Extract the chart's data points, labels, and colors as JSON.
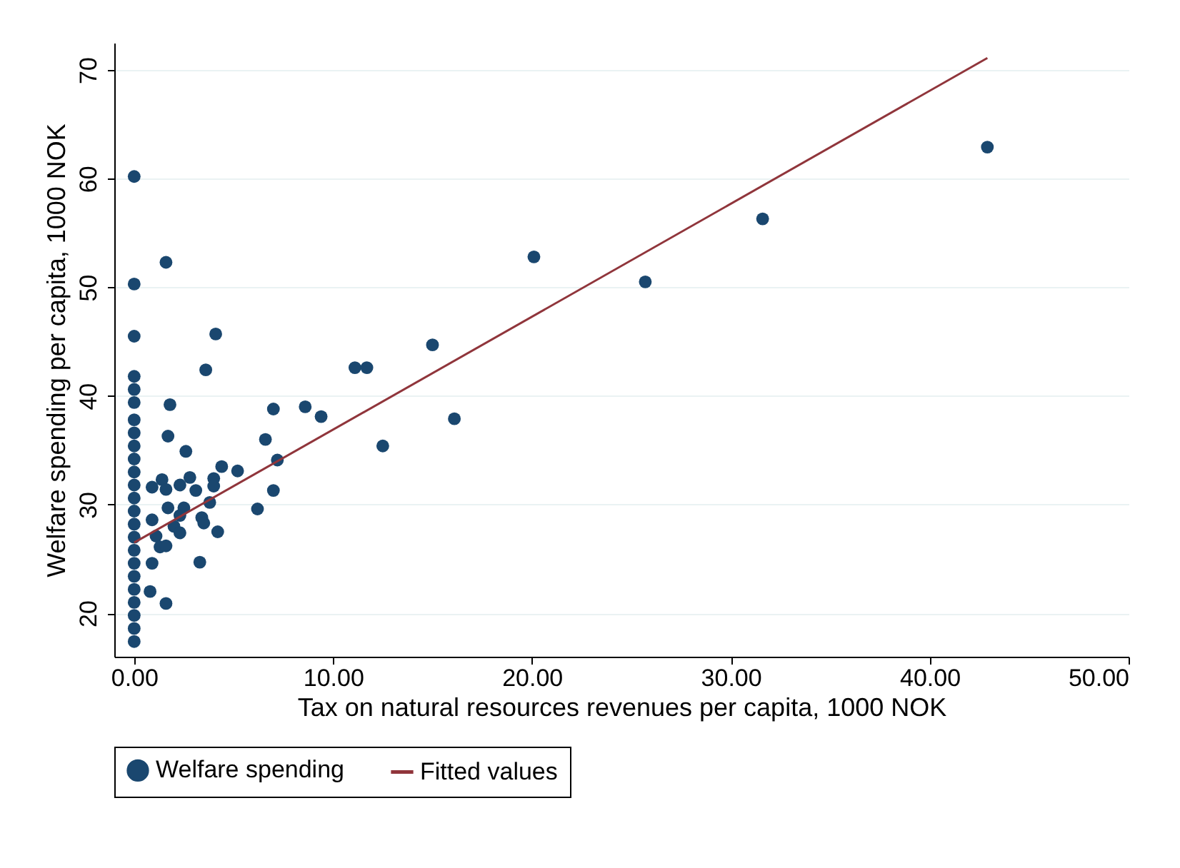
{
  "chart_data": {
    "type": "scatter",
    "xlabel": "Tax on natural resources revenues per capita, 1000 NOK",
    "ylabel": "Welfare spending per capita, 1000 NOK",
    "xlim": [
      -1,
      50
    ],
    "ylim": [
      16,
      72.5
    ],
    "xticks": [
      {
        "value": 0,
        "label": "0.00"
      },
      {
        "value": 10,
        "label": "10.00"
      },
      {
        "value": 20,
        "label": "20.00"
      },
      {
        "value": 30,
        "label": "30.00"
      },
      {
        "value": 40,
        "label": "40.00"
      },
      {
        "value": 50,
        "label": "50.00"
      }
    ],
    "yticks": [
      20,
      30,
      40,
      50,
      60,
      70
    ],
    "grid": "y",
    "legend": "bottom",
    "series": [
      {
        "name": "Welfare spending",
        "marker": "circle",
        "color": "#1a476f",
        "x": [
          0,
          0,
          0,
          0,
          0,
          0,
          0,
          0,
          0,
          0,
          0,
          0,
          0,
          0,
          0,
          0,
          0,
          0,
          0,
          0,
          0,
          0,
          0,
          0,
          0.9,
          0.8,
          42.9,
          31.6,
          25.7,
          20.1,
          15.0,
          16.1,
          12.5,
          11.1,
          11.7,
          7.0,
          8.6,
          9.4,
          6.6,
          7.2,
          7.0,
          6.2,
          5.2,
          1.6,
          4.1,
          3.6,
          1.8,
          1.7,
          2.6,
          4.4,
          4.0,
          2.8,
          1.4,
          0.9,
          1.6,
          2.3,
          3.1,
          4.0,
          3.8,
          1.7,
          2.5,
          0.9,
          2.3,
          3.4,
          3.5,
          2.0,
          2.3,
          4.2,
          1.1,
          1.3,
          1.6,
          3.3,
          1.6
        ],
        "values": [
          17.4,
          18.6,
          19.8,
          21.0,
          22.2,
          23.4,
          24.6,
          25.8,
          27.0,
          28.2,
          29.4,
          30.6,
          31.8,
          33.0,
          34.2,
          35.4,
          36.6,
          37.8,
          39.4,
          40.6,
          41.8,
          45.5,
          50.3,
          60.2,
          24.6,
          22.0,
          62.9,
          56.3,
          50.5,
          52.8,
          44.7,
          37.9,
          35.4,
          42.6,
          42.6,
          38.8,
          39.0,
          38.1,
          36.0,
          34.1,
          31.3,
          29.6,
          33.1,
          52.3,
          45.7,
          42.4,
          39.2,
          36.3,
          34.9,
          33.5,
          32.4,
          32.5,
          32.3,
          31.6,
          31.4,
          31.8,
          31.3,
          31.7,
          30.2,
          29.7,
          29.7,
          28.6,
          29.0,
          28.8,
          28.3,
          28.0,
          27.4,
          27.5,
          27.1,
          26.1,
          26.2,
          24.7,
          20.9
        ]
      },
      {
        "name": "Fitted values",
        "type": "line",
        "marker": "none",
        "color": "#90353b",
        "line_style": "solid",
        "x": [
          0,
          42.9
        ],
        "values": [
          26.5,
          71.1
        ]
      }
    ]
  }
}
